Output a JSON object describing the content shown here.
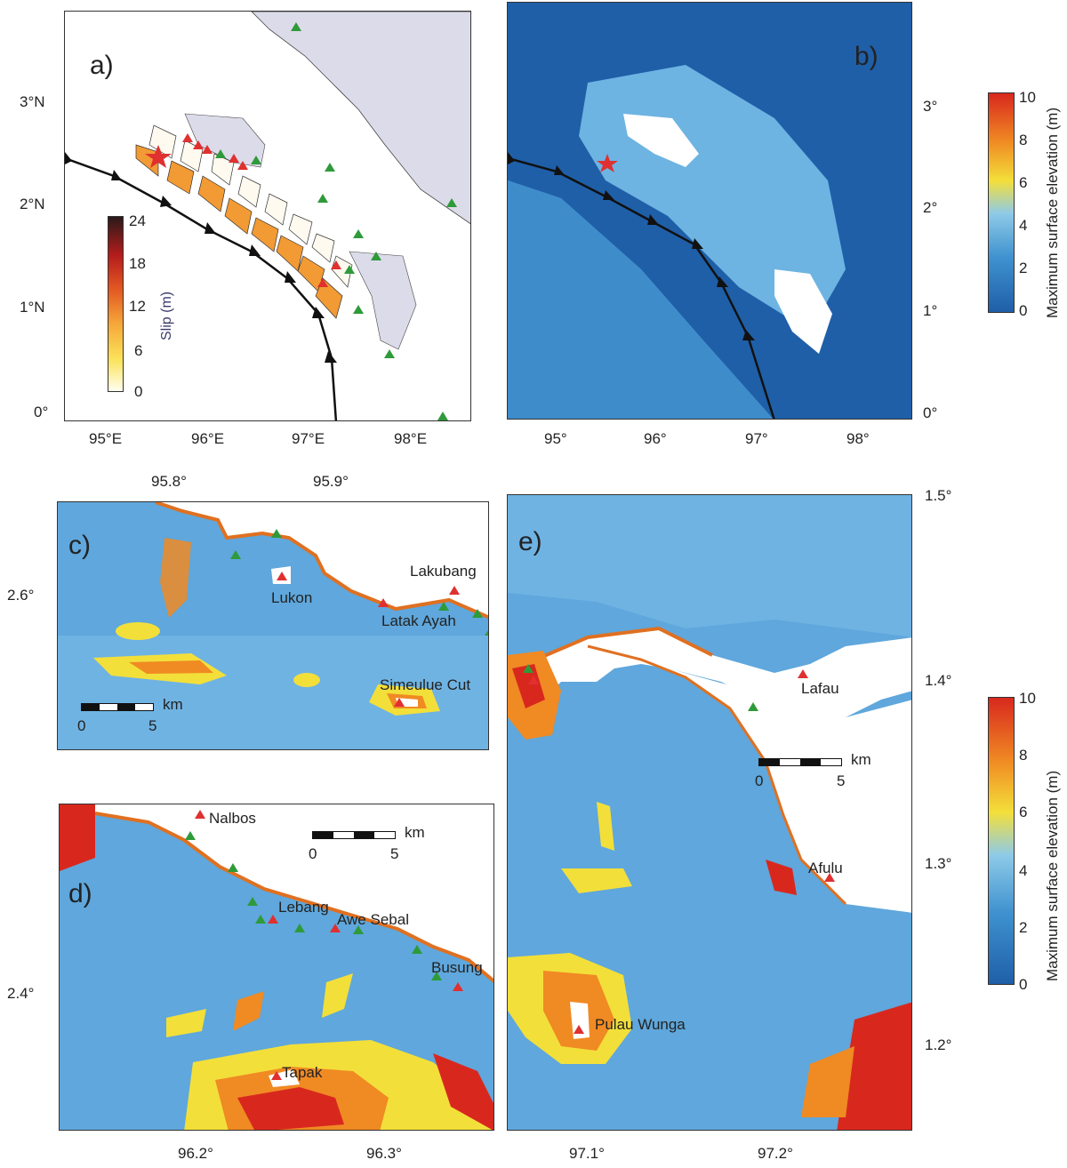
{
  "panels": {
    "a": {
      "label": "a)",
      "lon_ticks": [
        "95°E",
        "96°E",
        "97°E",
        "98°E"
      ],
      "lat_ticks": [
        "3°N",
        "2°N",
        "1°N",
        "0°"
      ],
      "slip_colorbar": {
        "title": "Slip (m)",
        "ticks": [
          "24",
          "18",
          "12",
          "6",
          "0"
        ]
      }
    },
    "b": {
      "label": "b)",
      "lon_ticks": [
        "95°",
        "96°",
        "97°",
        "98°"
      ],
      "lat_ticks": [
        "3°",
        "2°",
        "1°",
        "0°"
      ]
    },
    "c": {
      "label": "c)",
      "lon_ticks": [
        "95.8°",
        "95.9°"
      ],
      "lat_ticks": [
        "2.6°"
      ],
      "places": [
        "Lakubang",
        "Lukon",
        "Latak Ayah",
        "Simeulue Cut"
      ],
      "scale": {
        "unit": "km",
        "ticks": [
          "0",
          "5"
        ]
      }
    },
    "d": {
      "label": "d)",
      "lon_ticks": [
        "96.2°",
        "96.3°"
      ],
      "lat_ticks": [
        "2.4°"
      ],
      "places": [
        "Nalbos",
        "Lebang",
        "Awe Sebal",
        "Busung",
        "Tapak"
      ],
      "scale": {
        "unit": "km",
        "ticks": [
          "0",
          "5"
        ]
      }
    },
    "e": {
      "label": "e)",
      "lon_ticks": [
        "97.1°",
        "97.2°"
      ],
      "lat_ticks": [
        "1.5°",
        "1.4°",
        "1.3°",
        "1.2°"
      ],
      "places": [
        "Lafau",
        "Afulu",
        "Pulau Wunga"
      ],
      "scale": {
        "unit": "km",
        "ticks": [
          "0",
          "5"
        ]
      }
    }
  },
  "elevation_colorbar": {
    "title": "Maximum surface elevation (m)",
    "ticks": [
      "10",
      "8",
      "6",
      "4",
      "2",
      "0"
    ]
  },
  "colors": {
    "deep_blue": "#1f5fa8",
    "mid_blue": "#3f92cf",
    "light_blue": "#8ecae8",
    "yellow": "#f3df3a",
    "orange": "#f08a23",
    "red": "#d8281e",
    "land_gray": "#dcdbe9",
    "slip_orange": "#f29a33",
    "station_green": "#2f9a3a",
    "station_red": "#e03030"
  }
}
